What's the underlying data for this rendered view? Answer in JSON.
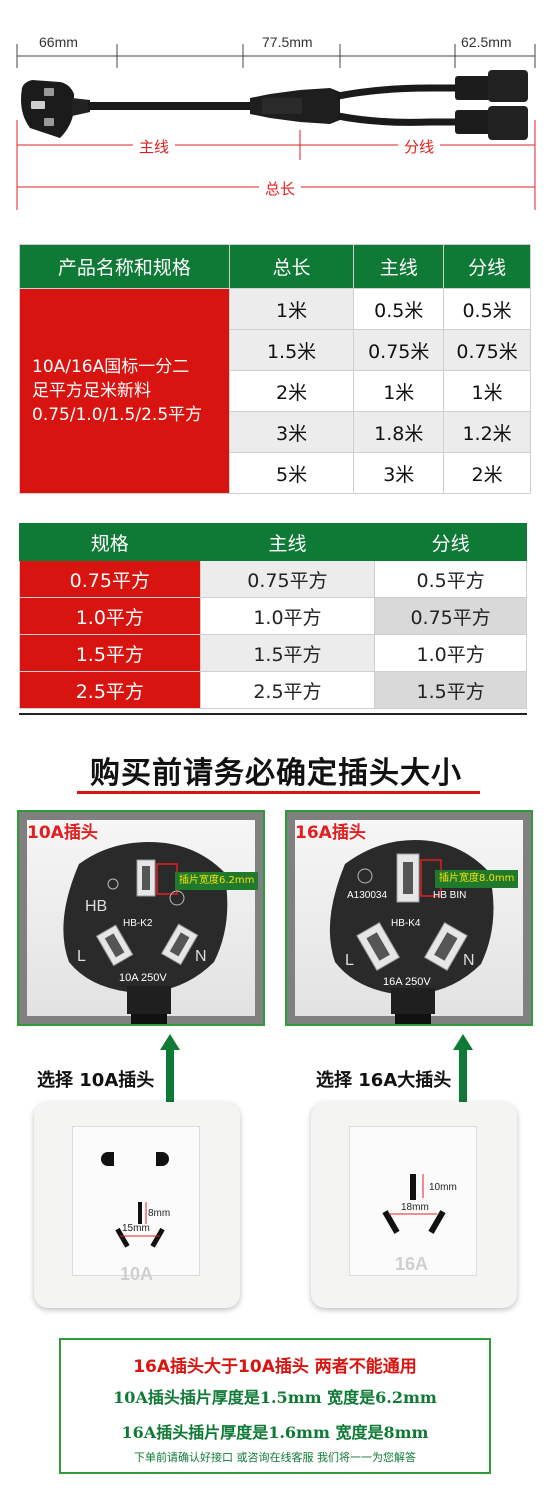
{
  "diagram": {
    "dim_left": "66mm",
    "dim_mid": "77.5mm",
    "dim_right": "62.5mm",
    "label_main": "主线",
    "label_branch": "分线",
    "label_total": "总长"
  },
  "table1": {
    "headers": [
      "产品名称和规格",
      "总长",
      "主线",
      "分线"
    ],
    "product_lines": [
      "10A/16A国标一分二",
      "足平方足米新料",
      "0.75/1.0/1.5/2.5平方"
    ],
    "rows": [
      [
        "1米",
        "0.5米",
        "0.5米"
      ],
      [
        "1.5米",
        "0.75米",
        "0.75米"
      ],
      [
        "2米",
        "1米",
        "1米"
      ],
      [
        "3米",
        "1.8米",
        "1.2米"
      ],
      [
        "5米",
        "3米",
        "2米"
      ]
    ]
  },
  "table2": {
    "headers": [
      "规格",
      "主线",
      "分线"
    ],
    "rows": [
      [
        "0.75平方",
        "0.75平方",
        "0.5平方"
      ],
      [
        "1.0平方",
        "1.0平方",
        "0.75平方"
      ],
      [
        "1.5平方",
        "1.5平方",
        "1.0平方"
      ],
      [
        "2.5平方",
        "2.5平方",
        "1.5平方"
      ]
    ]
  },
  "plugs": {
    "heading": "购买前请务必确定插头大小",
    "plug_10a": {
      "label": "10A插头",
      "hb": "HB",
      "model": "HB-K2",
      "l": "L",
      "n": "N",
      "rating": "10A 250V",
      "width_note": "插片宽度6.2mm"
    },
    "plug_16a": {
      "label": "16A插头",
      "cert": "A130034",
      "brand": "HB BIN",
      "model": "HB-K4",
      "l": "L",
      "n": "N",
      "rating": "16A 250V",
      "width_note": "插片宽度8.0mm"
    },
    "select_10a": "选择  10A插头",
    "select_16a": "选择  16A大插头",
    "socket_10a": {
      "mm_vertical": "8mm",
      "mm_horizontal": "15mm",
      "label": "10A"
    },
    "socket_16a": {
      "mm_vertical": "10mm",
      "mm_horizontal": "18mm",
      "label": "16A"
    }
  },
  "note": {
    "line1": "16A插头大于10A插头  两者不能通用",
    "line2": "10A插头插片厚度是1.5mm   宽度是6.2mm",
    "line3": "16A插头插片厚度是1.6mm   宽度是8mm",
    "line4": "下单前请确认好接口 或咨询在线客服 我们将一一为您解答"
  },
  "colors": {
    "green": "#0f7a35",
    "red": "#d81410",
    "frame_green": "#2f9a3a"
  }
}
